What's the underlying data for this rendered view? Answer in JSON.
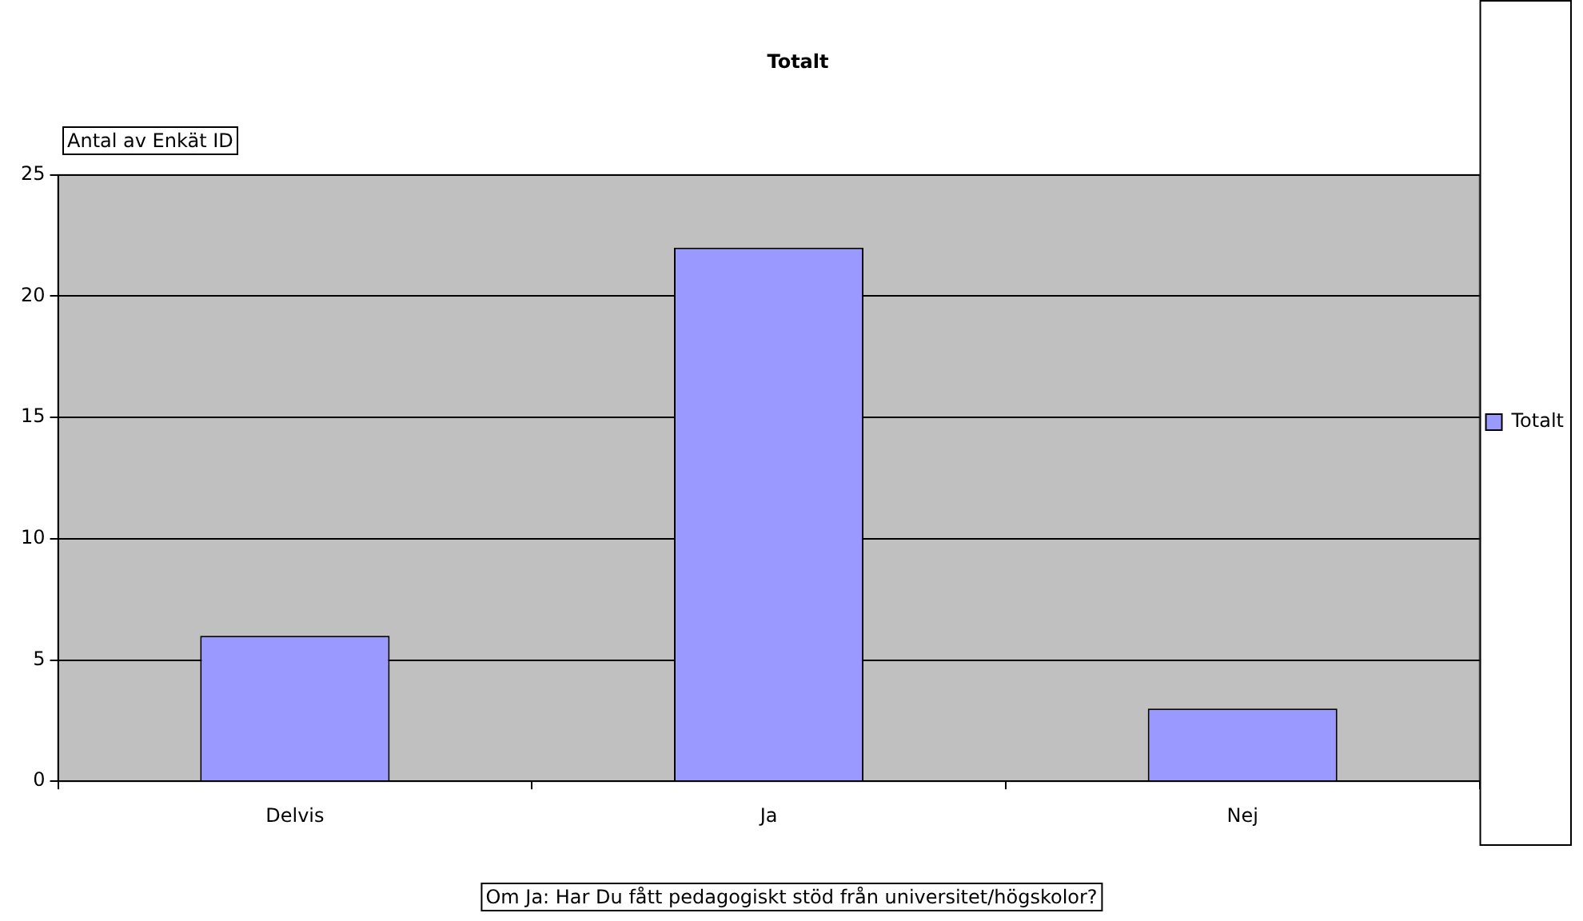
{
  "chart_data": {
    "type": "bar",
    "title": "Totalt",
    "xlabel": "Om Ja: Har Du fått pedagogiskt stöd från universitet/högskolor?",
    "ylabel": "Antal av Enkät ID",
    "categories": [
      "Delvis",
      "Ja",
      "Nej"
    ],
    "series": [
      {
        "name": "Totalt",
        "color": "#9999ff",
        "values": [
          6,
          22,
          3
        ]
      }
    ],
    "ylim": [
      0,
      25
    ],
    "yticks": [
      0,
      5,
      10,
      15,
      20,
      25
    ],
    "grid": "y",
    "legend": "right"
  }
}
